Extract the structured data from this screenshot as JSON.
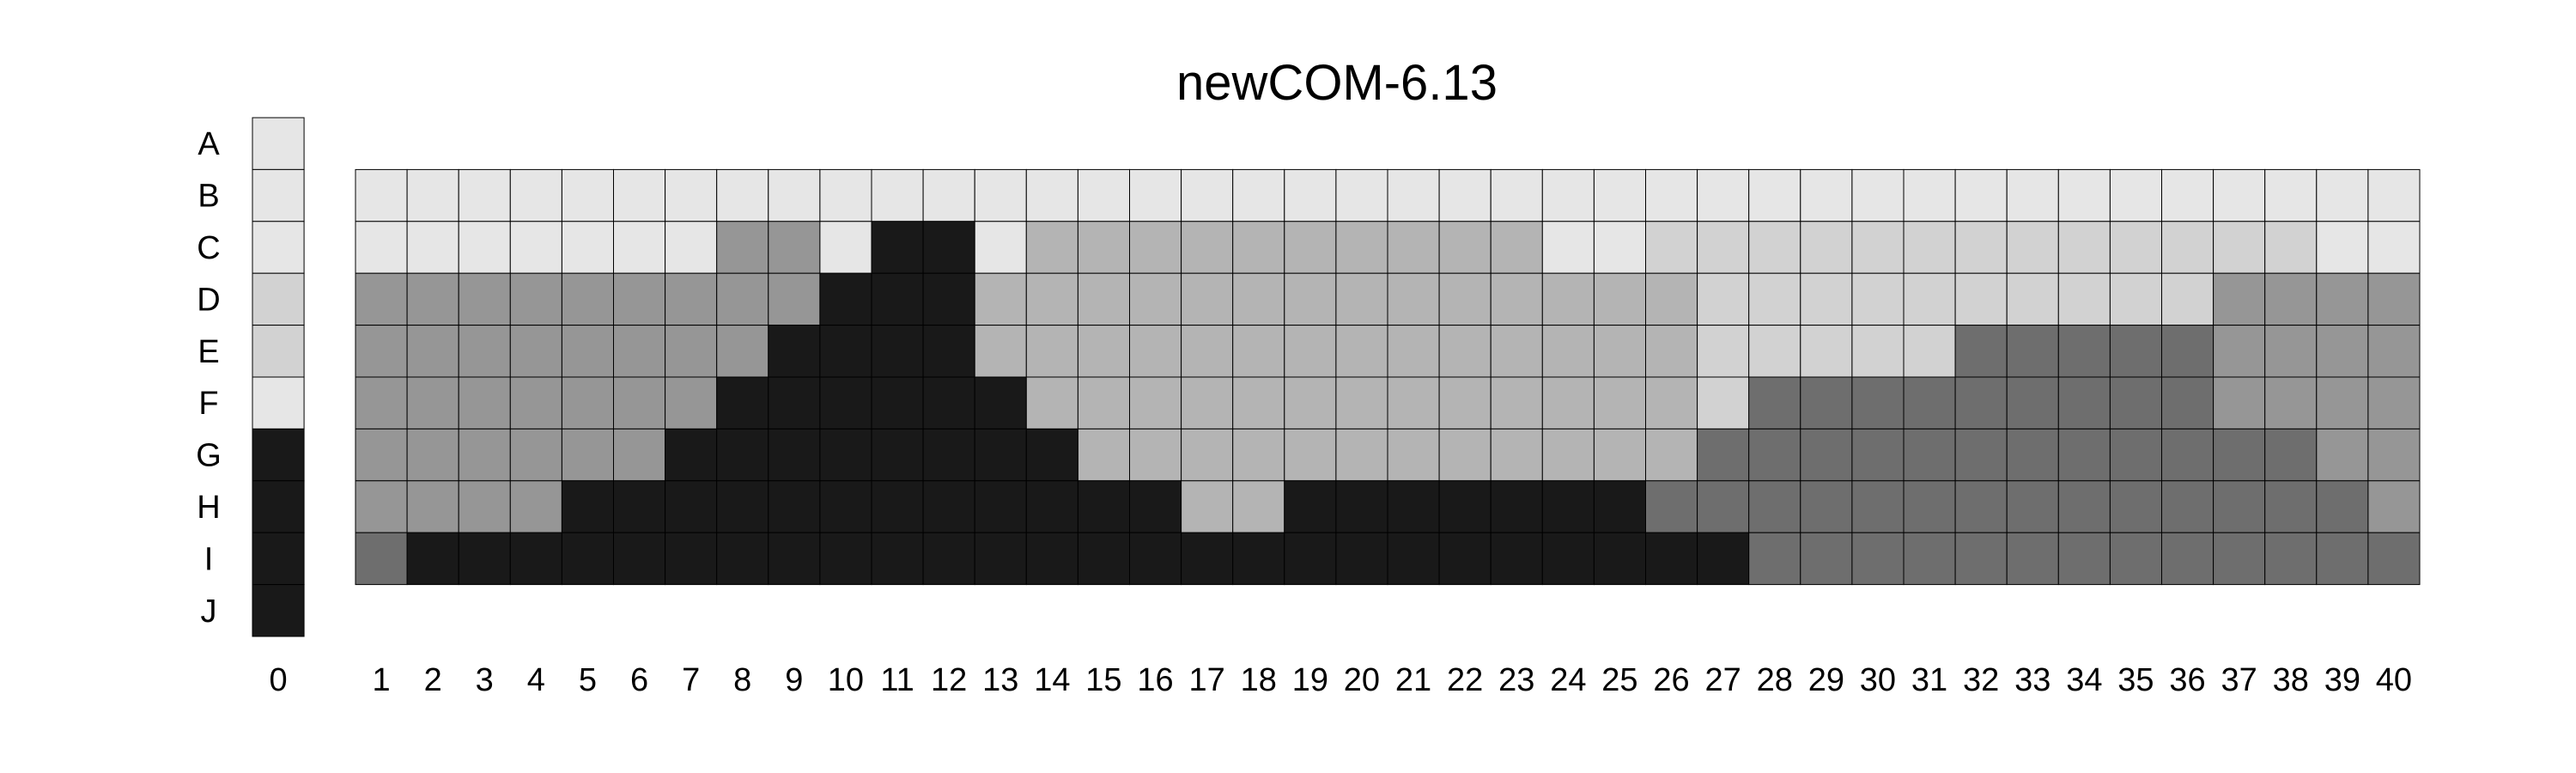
{
  "chart_data": {
    "type": "heatmap",
    "title": "newCOM-6.13",
    "rows": [
      "A",
      "B",
      "C",
      "D",
      "E",
      "F",
      "G",
      "H",
      "I",
      "J"
    ],
    "key_column": {
      "label": "0",
      "colors": [
        "#e6e6e6",
        "#e6e6e6",
        "#e6e6e6",
        "#d2d2d2",
        "#d2d2d2",
        "#e6e6e6",
        "#191919",
        "#191919",
        "#191919",
        "#191919"
      ]
    },
    "columns": [
      "1",
      "2",
      "3",
      "4",
      "5",
      "6",
      "7",
      "8",
      "9",
      "10",
      "11",
      "12",
      "13",
      "14",
      "15",
      "16",
      "17",
      "18",
      "19",
      "20",
      "21",
      "22",
      "23",
      "24",
      "25",
      "26",
      "27",
      "28",
      "29",
      "30",
      "31",
      "32",
      "33",
      "34",
      "35",
      "36",
      "37",
      "38",
      "39",
      "40"
    ],
    "palette": {
      "1": "#e6e6e6",
      "2": "#d2d2d2",
      "3": "#b4b4b4",
      "4": "#969696",
      "5": "#6e6e6e",
      "6": "#191919"
    },
    "grid_rows": [
      "B",
      "C",
      "D",
      "E",
      "F",
      "G",
      "H",
      "I"
    ],
    "grid": [
      "1111111111111111111111111111111111111111",
      "1111111441661333333333311222222222222211",
      "4444444446663333333333333322222222224444",
      "4444444466663333333333333322222555554444",
      "4444444666666333333333333325555555554444",
      "4444446666666633333333333355555555555544",
      "4444666666666666336666666555555555555554",
      "5666666666666666666666666665555555555555"
    ]
  }
}
